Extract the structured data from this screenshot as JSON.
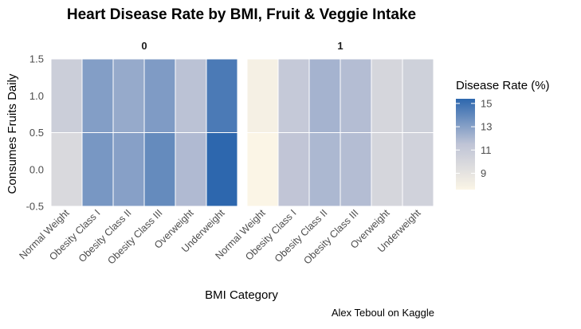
{
  "chart_data": {
    "type": "heatmap",
    "title": "Heart Disease Rate by BMI, Fruit & Veggie Intake",
    "xlabel": "BMI Category",
    "ylabel": "Consumes Fruits Daily",
    "caption": "Alex Teboul on Kaggle",
    "facet_labels": [
      "0",
      "1"
    ],
    "categories": [
      "Normal Weight",
      "Obesity Class I",
      "Obesity Class II",
      "Obesity Class III",
      "Overweight",
      "Underweight"
    ],
    "y_ticks": [
      "-0.5",
      "0.0",
      "0.5",
      "1.0",
      "1.5"
    ],
    "ylim": [
      -0.5,
      1.5
    ],
    "y_values": [
      0,
      1
    ],
    "legend": {
      "title": "Disease Rate (%)",
      "ticks": [
        "9",
        "11",
        "13",
        "15"
      ],
      "range": [
        7.6,
        15.4
      ],
      "placement": "right",
      "colors": [
        "#fbf5e6",
        "#bfc4d6",
        "#2d67ae"
      ]
    },
    "grid": true,
    "facets": [
      {
        "label": "0",
        "values": [
          [
            9.8,
            13.4,
            13.0,
            13.9,
            11.9,
            15.4
          ],
          [
            10.7,
            13.1,
            12.6,
            13.2,
            11.6,
            14.6
          ]
        ]
      },
      {
        "label": "1",
        "values": [
          [
            7.6,
            11.4,
            12.0,
            11.8,
            10.1,
            10.4
          ],
          [
            8.0,
            11.1,
            12.2,
            11.8,
            10.1,
            10.5
          ]
        ]
      }
    ]
  }
}
